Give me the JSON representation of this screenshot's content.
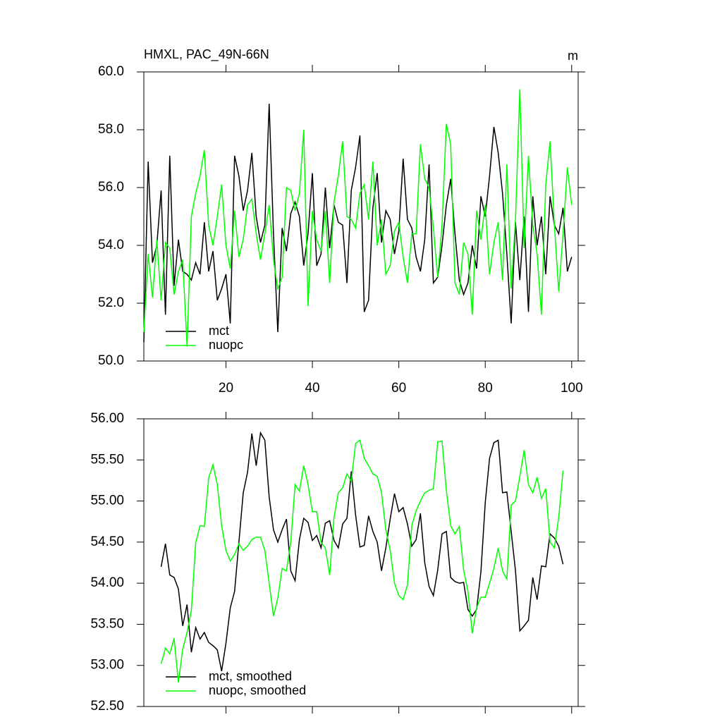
{
  "chart_data": [
    {
      "type": "line",
      "title": "HMXL, PAC_49N-66N",
      "units": "m",
      "x": [
        1,
        2,
        3,
        4,
        5,
        6,
        7,
        8,
        9,
        10,
        11,
        12,
        13,
        14,
        15,
        16,
        17,
        18,
        19,
        20,
        21,
        22,
        23,
        24,
        25,
        26,
        27,
        28,
        29,
        30,
        31,
        32,
        33,
        34,
        35,
        36,
        37,
        38,
        39,
        40,
        41,
        42,
        43,
        44,
        45,
        46,
        47,
        48,
        49,
        50,
        51,
        52,
        53,
        54,
        55,
        56,
        57,
        58,
        59,
        60,
        61,
        62,
        63,
        64,
        65,
        66,
        67,
        68,
        69,
        70,
        71,
        72,
        73,
        74,
        75,
        76,
        77,
        78,
        79,
        80,
        81,
        82,
        83,
        84,
        85,
        86,
        87,
        88,
        89,
        90,
        91,
        92,
        93,
        94,
        95,
        96,
        97,
        98,
        99,
        100
      ],
      "series": [
        {
          "name": "mct",
          "color": "#000000",
          "values": [
            50.65,
            56.9,
            53.4,
            54.0,
            55.9,
            51.6,
            57.1,
            52.6,
            54.2,
            53.1,
            53.0,
            52.8,
            53.4,
            53.0,
            54.8,
            53.1,
            53.8,
            52.1,
            52.5,
            53.0,
            51.3,
            57.1,
            56.4,
            55.2,
            55.9,
            57.2,
            55.0,
            54.1,
            54.7,
            58.9,
            54.4,
            51.0,
            54.6,
            53.8,
            55.1,
            55.5,
            55.0,
            53.3,
            54.4,
            56.5,
            53.3,
            53.7,
            56.0,
            53.9,
            55.4,
            54.8,
            54.7,
            52.7,
            55.9,
            56.7,
            57.8,
            51.7,
            52.1,
            55.3,
            56.5,
            54.1,
            55.2,
            54.9,
            53.7,
            54.5,
            57.0,
            54.9,
            54.6,
            53.6,
            53.1,
            54.2,
            56.8,
            52.7,
            52.9,
            54.0,
            55.4,
            56.3,
            54.4,
            52.8,
            52.3,
            52.7,
            54.0,
            53.2,
            55.7,
            55.0,
            56.4,
            58.1,
            57.2,
            55.8,
            53.7,
            51.3,
            54.8,
            52.8,
            55.0,
            51.7,
            55.7,
            54.0,
            55.0,
            53.0,
            55.7,
            54.7,
            54.4,
            55.3,
            53.1,
            53.6
          ]
        },
        {
          "name": "nuopc",
          "color": "#00ff00",
          "values": [
            51.0,
            53.7,
            52.2,
            54.2,
            52.1,
            54.1,
            53.9,
            52.3,
            53.1,
            53.5,
            50.5,
            55.0,
            55.8,
            56.4,
            57.3,
            54.7,
            54.0,
            55.0,
            56.1,
            54.0,
            53.2,
            55.2,
            53.6,
            54.2,
            55.4,
            55.6,
            54.4,
            53.5,
            54.4,
            55.4,
            53.5,
            52.5,
            52.9,
            56.0,
            55.9,
            55.2,
            55.8,
            58.0,
            51.9,
            55.2,
            54.2,
            53.8,
            55.2,
            52.7,
            55.5,
            56.4,
            57.6,
            55.0,
            54.9,
            54.6,
            55.8,
            56.1,
            54.9,
            56.9,
            54.0,
            54.9,
            53.0,
            53.3,
            54.5,
            54.8,
            53.6,
            52.7,
            54.4,
            54.4,
            57.5,
            56.3,
            56.0,
            54.6,
            52.9,
            54.7,
            58.2,
            57.5,
            52.7,
            52.3,
            54.1,
            53.7,
            51.6,
            55.2,
            54.2,
            55.4,
            53.0,
            54.1,
            54.8,
            52.8,
            56.8,
            52.5,
            54.9,
            59.4,
            53.9,
            57.1,
            54.7,
            53.7,
            51.6,
            56.1,
            57.6,
            54.7,
            52.4,
            54.4,
            56.7,
            55.4
          ]
        }
      ],
      "xlim": [
        1,
        101.5
      ],
      "xticks": [
        20,
        40,
        60,
        80,
        100
      ],
      "ylim": [
        50,
        60
      ],
      "yticks": [
        {
          "value": 50,
          "label": "50.0"
        },
        {
          "value": 52,
          "label": "52.0"
        },
        {
          "value": 54,
          "label": "54.0"
        },
        {
          "value": 56,
          "label": "56.0"
        },
        {
          "value": 58,
          "label": "58.0"
        },
        {
          "value": 60,
          "label": "60.0"
        }
      ],
      "legend": "lower left"
    },
    {
      "type": "line",
      "x": [
        5,
        6,
        7,
        8,
        9,
        10,
        11,
        12,
        13,
        14,
        15,
        16,
        17,
        18,
        19,
        20,
        21,
        22,
        23,
        24,
        25,
        26,
        27,
        28,
        29,
        30,
        31,
        32,
        33,
        34,
        35,
        36,
        37,
        38,
        39,
        40,
        41,
        42,
        43,
        44,
        45,
        46,
        47,
        48,
        49,
        50,
        51,
        52,
        53,
        54,
        55,
        56,
        57,
        58,
        59,
        60,
        61,
        62,
        63,
        64,
        65,
        66,
        67,
        68,
        69,
        70,
        71,
        72,
        73,
        74,
        75,
        76,
        77,
        78,
        79,
        80,
        81,
        82,
        83,
        84,
        85,
        86,
        87,
        88,
        89,
        90,
        91,
        92,
        93,
        94,
        95,
        96,
        97,
        98
      ],
      "series": [
        {
          "name": "mct, smoothed",
          "color": "#000000",
          "values": [
            54.2,
            54.48,
            54.1,
            54.07,
            53.93,
            53.48,
            53.74,
            53.16,
            53.46,
            53.32,
            53.4,
            53.28,
            53.24,
            53.19,
            52.93,
            53.27,
            53.7,
            53.9,
            54.5,
            55.1,
            55.35,
            55.82,
            55.43,
            55.83,
            55.74,
            55.05,
            54.65,
            54.5,
            54.65,
            54.78,
            54.15,
            54.03,
            54.53,
            54.79,
            54.74,
            54.52,
            54.58,
            54.43,
            54.73,
            54.76,
            54.52,
            54.43,
            54.72,
            54.79,
            55.36,
            54.83,
            54.44,
            54.46,
            54.82,
            54.63,
            54.5,
            54.15,
            54.43,
            54.78,
            55.09,
            54.87,
            54.92,
            54.72,
            54.45,
            54.53,
            54.85,
            54.25,
            53.96,
            53.85,
            54.16,
            54.6,
            54.63,
            54.07,
            54.02,
            54.0,
            54.01,
            53.68,
            53.6,
            53.68,
            54.14,
            54.98,
            55.52,
            55.71,
            55.74,
            55.1,
            55.11,
            54.63,
            54.15,
            53.42,
            53.48,
            53.55,
            54.07,
            53.8,
            54.21,
            54.2,
            54.6,
            54.55,
            54.45,
            54.23
          ]
        },
        {
          "name": "nuopc, smoothed",
          "color": "#00ff00",
          "values": [
            53.02,
            53.21,
            53.14,
            53.33,
            52.79,
            53.2,
            53.4,
            53.67,
            54.49,
            54.7,
            54.69,
            55.28,
            55.44,
            55.2,
            54.7,
            54.4,
            54.27,
            54.35,
            54.48,
            54.4,
            54.45,
            54.53,
            54.56,
            54.56,
            54.4,
            54.0,
            53.6,
            53.82,
            54.18,
            54.15,
            54.5,
            55.2,
            55.12,
            55.43,
            55.2,
            54.87,
            54.87,
            54.5,
            54.43,
            54.1,
            54.8,
            55.1,
            55.16,
            55.33,
            55.24,
            55.7,
            55.74,
            55.52,
            55.43,
            55.33,
            55.3,
            55.1,
            54.65,
            54.4,
            54.0,
            53.85,
            53.8,
            53.98,
            54.7,
            54.88,
            55.0,
            55.1,
            55.13,
            55.15,
            55.72,
            55.73,
            55.13,
            54.7,
            54.6,
            54.69,
            54.16,
            53.9,
            53.39,
            53.7,
            53.83,
            53.83,
            54.0,
            54.18,
            54.43,
            54.15,
            54.05,
            54.95,
            55.0,
            55.3,
            55.62,
            55.2,
            55.1,
            55.29,
            55.03,
            55.15,
            54.5,
            54.43,
            54.8,
            55.37
          ]
        }
      ],
      "xlim": [
        1,
        101.5
      ],
      "xticks": [
        20,
        40,
        60,
        80,
        100
      ],
      "ylim": [
        52.5,
        56
      ],
      "yticks": [
        {
          "value": 52.5,
          "label": "52.50"
        },
        {
          "value": 53,
          "label": "53.00"
        },
        {
          "value": 53.5,
          "label": "53.50"
        },
        {
          "value": 54,
          "label": "54.00"
        },
        {
          "value": 54.5,
          "label": "54.50"
        },
        {
          "value": 55,
          "label": "55.00"
        },
        {
          "value": 55.5,
          "label": "55.50"
        },
        {
          "value": 56,
          "label": "56.00"
        }
      ],
      "legend": "lower left"
    }
  ]
}
